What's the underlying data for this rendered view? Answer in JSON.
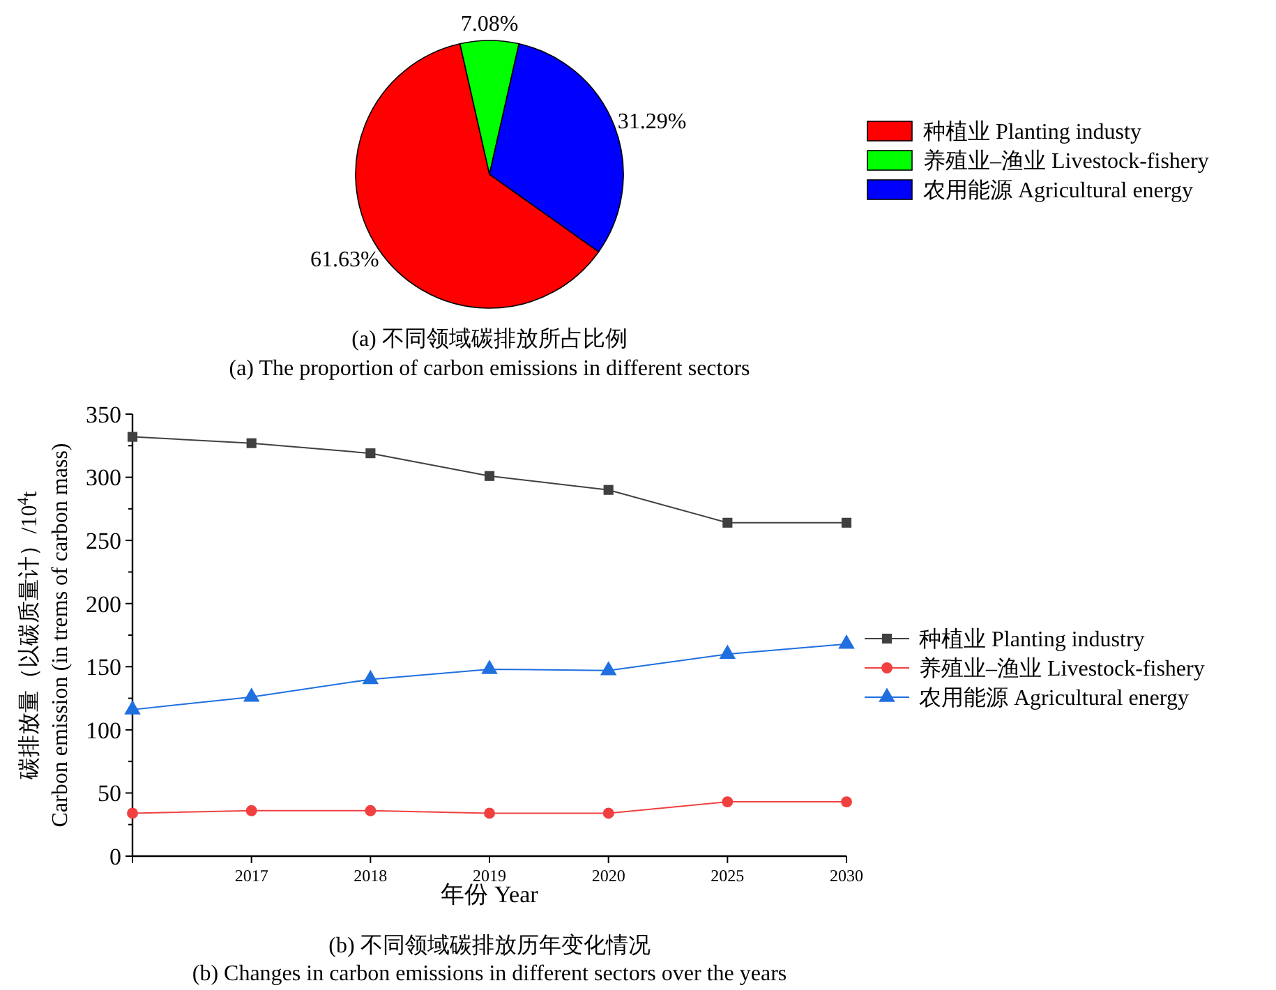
{
  "chart_data": [
    {
      "type": "pie",
      "title": "(a) 不同领域碳排放所占比例",
      "subtitle": "(a) The proportion of carbon emissions in different sectors",
      "categories": [
        "种植业  Planting industy",
        "养殖业–渔业 Livestock-fishery",
        "农用能源 Agricultural energy"
      ],
      "values": [
        61.63,
        7.08,
        31.29
      ],
      "colors": [
        "#ff0000",
        "#00ff00",
        "#0000ff"
      ],
      "value_labels": [
        "61.63%",
        "7.08%",
        "31.29%"
      ],
      "legend": "right"
    },
    {
      "type": "line",
      "title": "(b) 不同领域碳排放历年变化情况",
      "subtitle": "(b) Changes in carbon emissions in different sectors over the years",
      "xlabel": "年份 Year",
      "ylabel": "碳排放量（以碳质量计）/10$^{4}$t\nCarbon emission (in trems of carbon mass)",
      "categories": [
        null,
        "2017",
        "2018",
        "2019",
        "2020",
        "2025",
        "2030"
      ],
      "ylim": [
        0,
        350
      ],
      "yticks": [
        0,
        50,
        100,
        150,
        200,
        250,
        300,
        350
      ],
      "legend": "right",
      "grid": false,
      "series": [
        {
          "name": "种植业 Planting industry",
          "color": "#404040",
          "marker": "square",
          "values": [
            332,
            327,
            319,
            301,
            290,
            264,
            264
          ]
        },
        {
          "name": "养殖业–渔业 Livestock-fishery",
          "color": "#f04040",
          "marker": "circle",
          "values": [
            34,
            36,
            36,
            34,
            34,
            43,
            43
          ]
        },
        {
          "name": "农用能源 Agricultural energy",
          "color": "#1f6fdf",
          "marker": "triangle",
          "values": [
            116,
            126,
            140,
            148,
            147,
            160,
            168
          ]
        }
      ]
    }
  ]
}
